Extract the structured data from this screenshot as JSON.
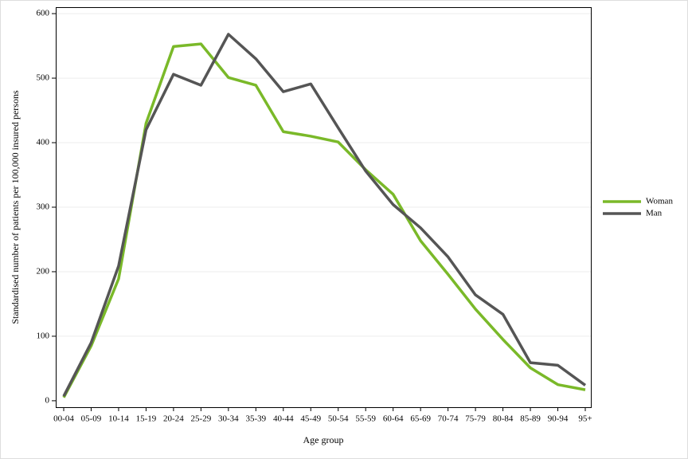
{
  "chart_data": {
    "type": "line",
    "categories": [
      "00-04",
      "05-09",
      "10-14",
      "15-19",
      "20-24",
      "25-29",
      "30-34",
      "35-39",
      "40-44",
      "45-49",
      "50-54",
      "55-59",
      "60-64",
      "65-69",
      "70-74",
      "75-79",
      "80-84",
      "85-89",
      "90-94",
      "95+"
    ],
    "series": [
      {
        "name": "Woman",
        "color": "#7ab929",
        "values": [
          5,
          85,
          189,
          430,
          549,
          553,
          501,
          489,
          417,
          410,
          401,
          358,
          320,
          248,
          196,
          142,
          95,
          51,
          25,
          17
        ]
      },
      {
        "name": "Man",
        "color": "#555555",
        "values": [
          7,
          90,
          209,
          420,
          506,
          489,
          568,
          530,
          479,
          491,
          423,
          356,
          304,
          268,
          223,
          164,
          134,
          59,
          55,
          24
        ]
      }
    ],
    "x_label": "Age group",
    "y_label": "Standardised number of patients per 100,000 insured persons",
    "ylim": [
      -10,
      610
    ],
    "yticks": [
      0,
      100,
      200,
      300,
      400,
      500,
      600
    ],
    "grid": true,
    "legend": "right"
  }
}
